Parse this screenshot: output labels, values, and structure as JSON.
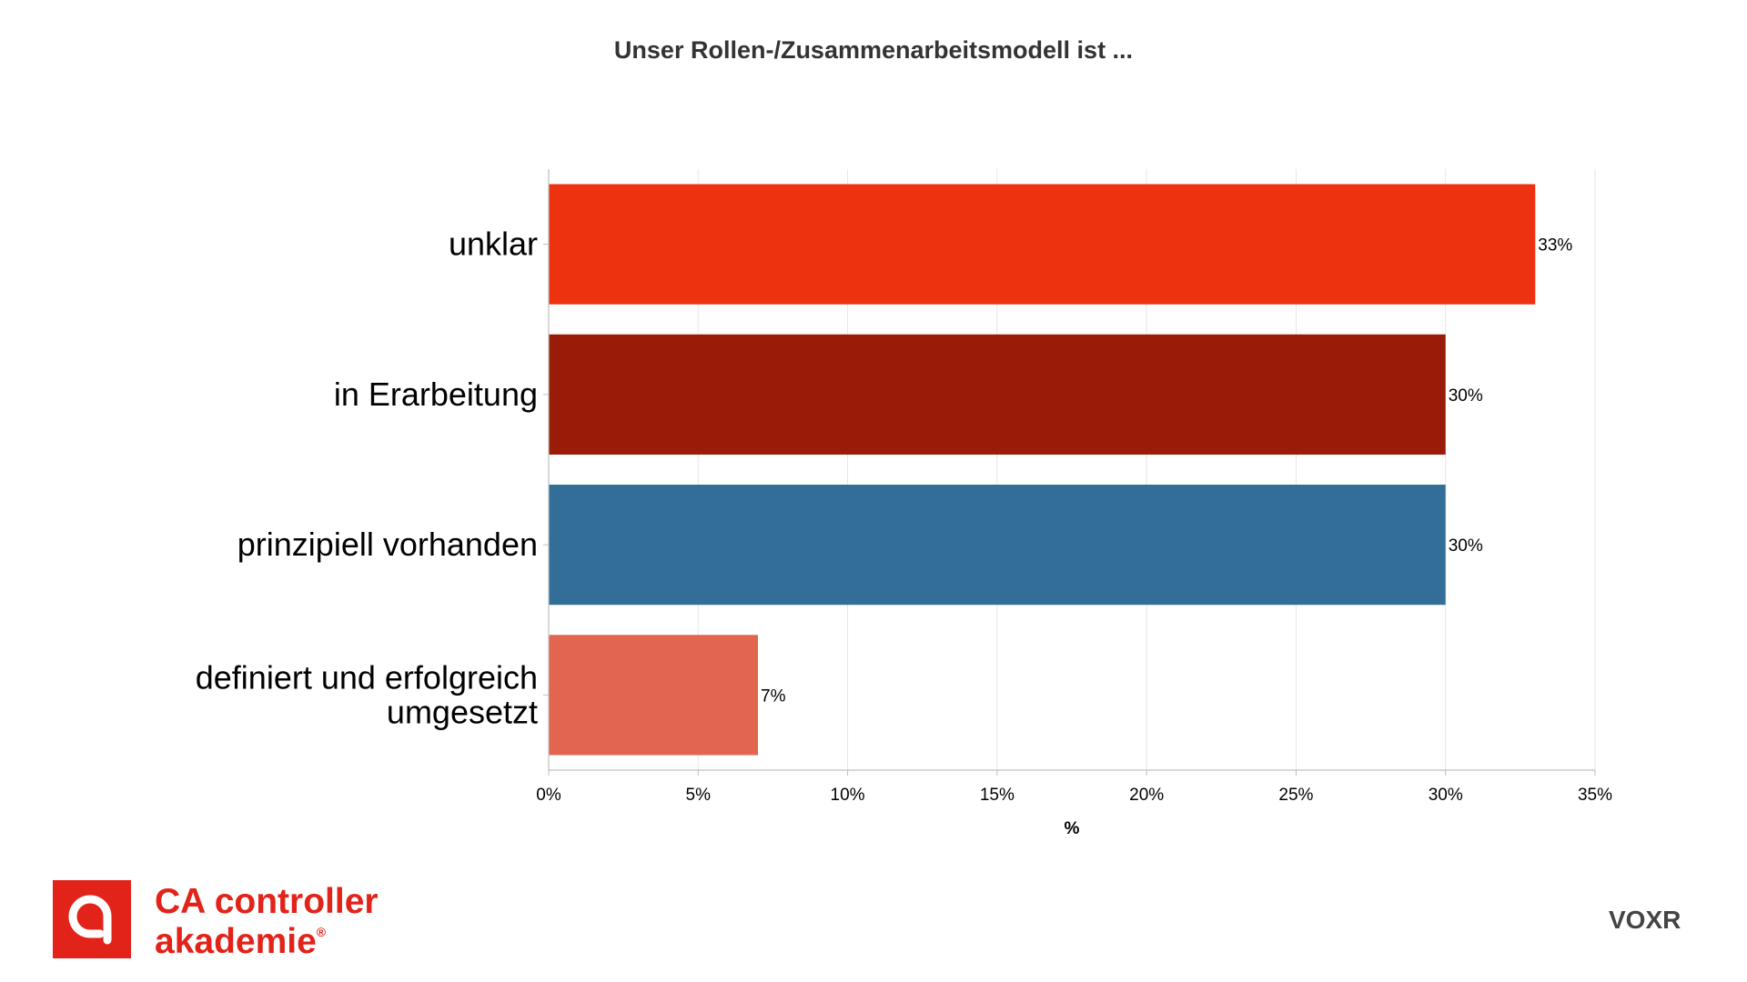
{
  "chart_data": {
    "type": "bar",
    "orientation": "horizontal",
    "title": "Unser Rollen-/Zusammenarbeitsmodell ist ...",
    "xlabel": "%",
    "ylabel": "",
    "xlim": [
      0,
      35
    ],
    "x_ticks": [
      "0%",
      "5%",
      "10%",
      "15%",
      "20%",
      "25%",
      "30%",
      "35%"
    ],
    "grid": true,
    "categories": [
      [
        "unklar"
      ],
      [
        "in Erarbeitung"
      ],
      [
        "prinzipiell vorhanden"
      ],
      [
        "definiert und erfolgreich",
        "umgesetzt"
      ]
    ],
    "values": [
      33,
      30,
      30,
      7
    ],
    "value_labels": [
      "33%",
      "30%",
      "30%",
      "7%"
    ],
    "colors": [
      "#EC320E",
      "#9A1B08",
      "#336E98",
      "#E26550"
    ]
  },
  "branding": {
    "logo_line1": "CA controller",
    "logo_line2": "akademie",
    "logo_reg": "®",
    "logo_color": "#E2231A",
    "voxr": "VOXR",
    "voxr_color": "#444444"
  }
}
